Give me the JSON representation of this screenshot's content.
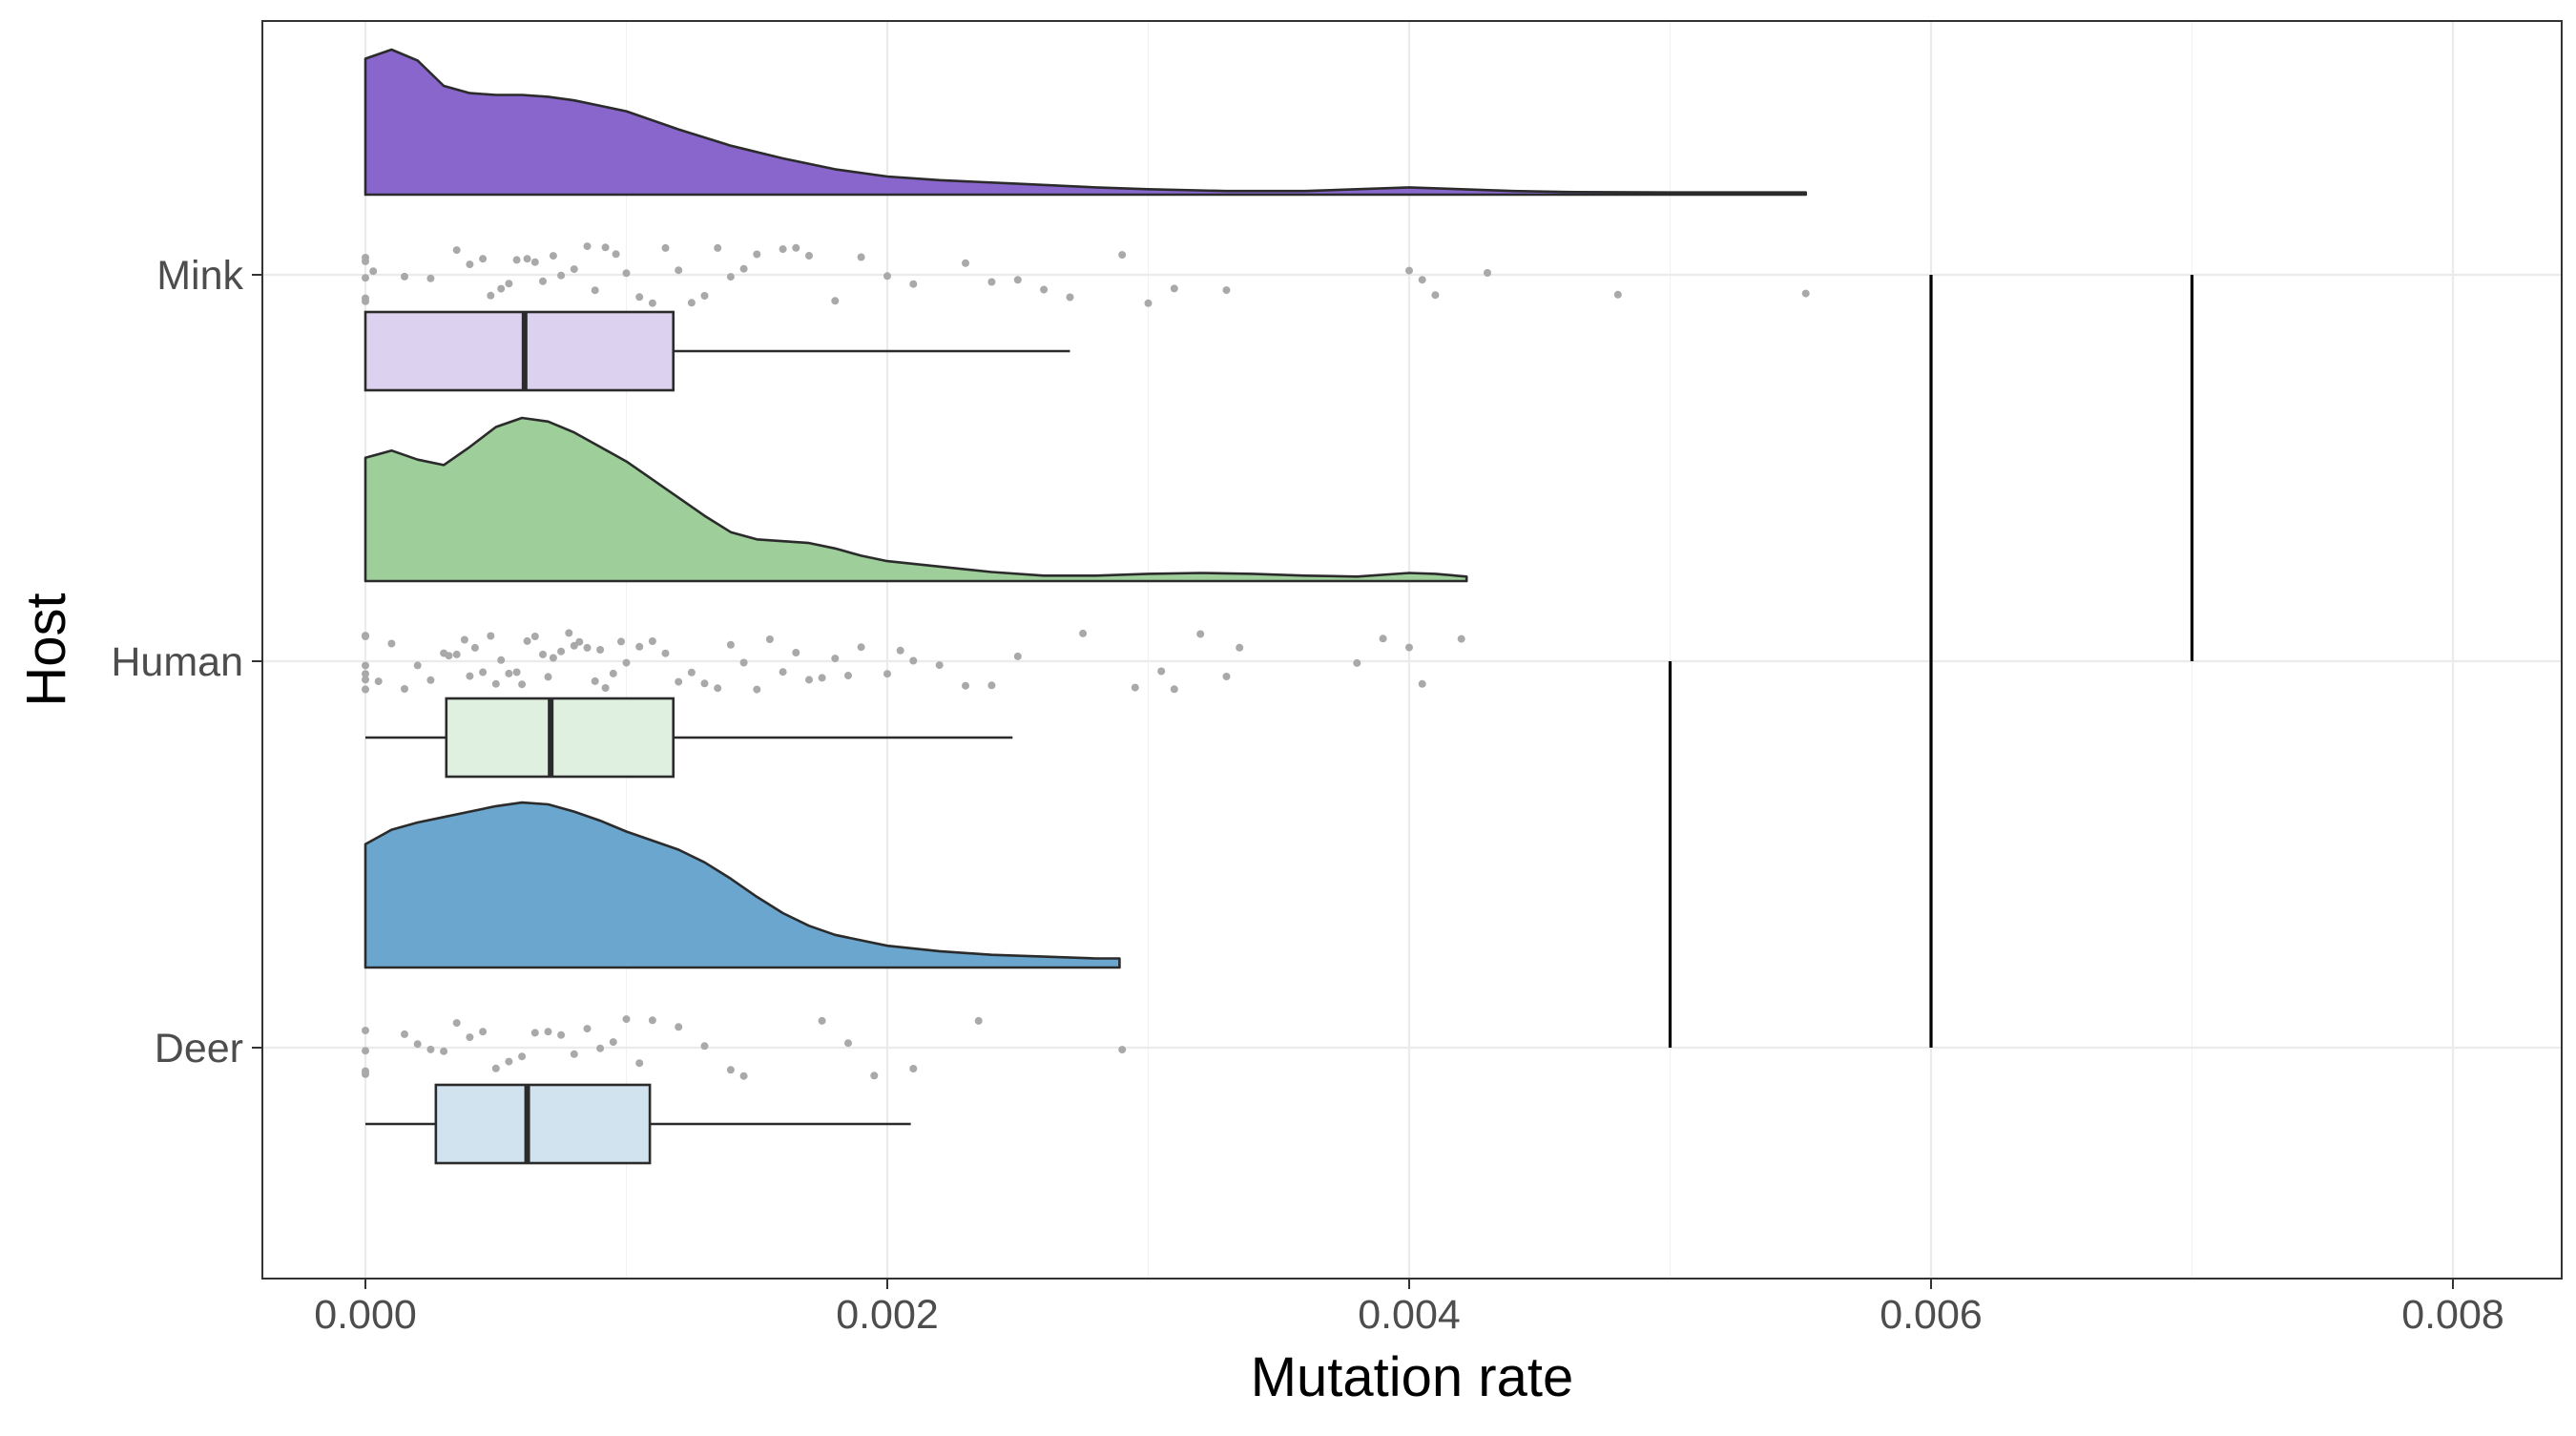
{
  "chart_data": {
    "type": "raincloud",
    "xlabel": "Mutation rate",
    "ylabel": "Host",
    "xlim": [
      -0.0002,
      0.0084
    ],
    "x_ticks": [
      0.0,
      0.002,
      0.004,
      0.006,
      0.008
    ],
    "x_tick_labels": [
      "0.000",
      "0.002",
      "0.004",
      "0.006",
      "0.008"
    ],
    "grid": true,
    "theme": "bw",
    "categories": [
      "Deer",
      "Human",
      "Mink"
    ],
    "series": [
      {
        "host": "Mink",
        "density_color": "#8866CC",
        "box_color": "#DCD2F0",
        "box": {
          "min": 0.0,
          "q1": 0.0,
          "median": 0.00061,
          "q3": 0.00118,
          "max": 0.0027
        },
        "density_max_x": 0.00552,
        "density": [
          [
            0.0,
            0.75
          ],
          [
            0.0001,
            0.8
          ],
          [
            0.0002,
            0.74
          ],
          [
            0.0003,
            0.6
          ],
          [
            0.0004,
            0.56
          ],
          [
            0.0005,
            0.55
          ],
          [
            0.0006,
            0.55
          ],
          [
            0.0007,
            0.54
          ],
          [
            0.0008,
            0.52
          ],
          [
            0.001,
            0.46
          ],
          [
            0.0012,
            0.36
          ],
          [
            0.0014,
            0.27
          ],
          [
            0.0016,
            0.2
          ],
          [
            0.0018,
            0.14
          ],
          [
            0.002,
            0.1
          ],
          [
            0.0022,
            0.08
          ],
          [
            0.0025,
            0.06
          ],
          [
            0.0028,
            0.04
          ],
          [
            0.003,
            0.03
          ],
          [
            0.0033,
            0.02
          ],
          [
            0.0036,
            0.02
          ],
          [
            0.0038,
            0.03
          ],
          [
            0.004,
            0.04
          ],
          [
            0.0042,
            0.03
          ],
          [
            0.0044,
            0.02
          ],
          [
            0.0046,
            0.015
          ],
          [
            0.005,
            0.012
          ],
          [
            0.00552,
            0.012
          ]
        ],
        "jitter_points": [
          0.0,
          0.0,
          0.0,
          0.0,
          0.0,
          3e-05,
          0.00015,
          0.00025,
          0.00035,
          0.0004,
          0.00045,
          0.00048,
          0.00052,
          0.00055,
          0.00058,
          0.00062,
          0.00065,
          0.00068,
          0.00072,
          0.00075,
          0.0008,
          0.00085,
          0.00088,
          0.00092,
          0.00096,
          0.001,
          0.00105,
          0.0011,
          0.00115,
          0.0012,
          0.00125,
          0.0013,
          0.00135,
          0.0014,
          0.00145,
          0.0015,
          0.0016,
          0.00165,
          0.0017,
          0.0018,
          0.0019,
          0.002,
          0.0021,
          0.0023,
          0.0024,
          0.0025,
          0.0026,
          0.0027,
          0.0029,
          0.003,
          0.0031,
          0.0033,
          0.004,
          0.00405,
          0.0041,
          0.0043,
          0.0048,
          0.00552
        ]
      },
      {
        "host": "Human",
        "density_color": "#9ECE9A",
        "box_color": "#E0F0E0",
        "box": {
          "min": 0.0,
          "q1": 0.00031,
          "median": 0.00071,
          "q3": 0.00118,
          "max": 0.00248
        },
        "density_max_x": 0.00422,
        "density": [
          [
            0.0,
            0.68
          ],
          [
            0.0001,
            0.72
          ],
          [
            0.0002,
            0.67
          ],
          [
            0.0003,
            0.64
          ],
          [
            0.0004,
            0.74
          ],
          [
            0.0005,
            0.85
          ],
          [
            0.0006,
            0.9
          ],
          [
            0.0007,
            0.88
          ],
          [
            0.0008,
            0.82
          ],
          [
            0.0009,
            0.74
          ],
          [
            0.001,
            0.66
          ],
          [
            0.0011,
            0.56
          ],
          [
            0.0012,
            0.46
          ],
          [
            0.0013,
            0.36
          ],
          [
            0.0014,
            0.27
          ],
          [
            0.0015,
            0.23
          ],
          [
            0.0016,
            0.22
          ],
          [
            0.0017,
            0.21
          ],
          [
            0.0018,
            0.18
          ],
          [
            0.0019,
            0.14
          ],
          [
            0.002,
            0.11
          ],
          [
            0.0022,
            0.08
          ],
          [
            0.0024,
            0.05
          ],
          [
            0.0026,
            0.03
          ],
          [
            0.0028,
            0.03
          ],
          [
            0.003,
            0.04
          ],
          [
            0.0032,
            0.045
          ],
          [
            0.0034,
            0.04
          ],
          [
            0.0036,
            0.03
          ],
          [
            0.0038,
            0.025
          ],
          [
            0.004,
            0.045
          ],
          [
            0.0041,
            0.04
          ],
          [
            0.00422,
            0.025
          ]
        ],
        "jitter_points": [
          0.0,
          0.0,
          0.0,
          0.0,
          0.0,
          0.0,
          5e-05,
          0.0001,
          0.00015,
          0.0002,
          0.00025,
          0.0003,
          0.00032,
          0.00035,
          0.00038,
          0.0004,
          0.00042,
          0.00045,
          0.00048,
          0.0005,
          0.00052,
          0.00055,
          0.00058,
          0.0006,
          0.00062,
          0.00065,
          0.00068,
          0.0007,
          0.00072,
          0.00075,
          0.00078,
          0.0008,
          0.00082,
          0.00085,
          0.00088,
          0.0009,
          0.00092,
          0.00095,
          0.00098,
          0.001,
          0.00105,
          0.0011,
          0.00115,
          0.0012,
          0.00125,
          0.0013,
          0.00135,
          0.0014,
          0.00145,
          0.0015,
          0.00155,
          0.0016,
          0.00165,
          0.0017,
          0.00175,
          0.0018,
          0.00185,
          0.0019,
          0.002,
          0.00205,
          0.0021,
          0.0022,
          0.0023,
          0.0024,
          0.0025,
          0.00275,
          0.00295,
          0.00305,
          0.0031,
          0.0032,
          0.0033,
          0.00335,
          0.0038,
          0.0039,
          0.004,
          0.00405,
          0.0042
        ]
      },
      {
        "host": "Deer",
        "density_color": "#6BA6CE",
        "box_color": "#D2E3F0",
        "box": {
          "min": 0.0,
          "q1": 0.00027,
          "median": 0.00062,
          "q3": 0.00109,
          "max": 0.00209
        },
        "density_max_x": 0.00289,
        "density": [
          [
            0.0,
            0.68
          ],
          [
            0.0001,
            0.76
          ],
          [
            0.0002,
            0.8
          ],
          [
            0.0003,
            0.83
          ],
          [
            0.0004,
            0.86
          ],
          [
            0.0005,
            0.89
          ],
          [
            0.0006,
            0.91
          ],
          [
            0.0007,
            0.9
          ],
          [
            0.0008,
            0.86
          ],
          [
            0.0009,
            0.81
          ],
          [
            0.001,
            0.75
          ],
          [
            0.0011,
            0.7
          ],
          [
            0.0012,
            0.65
          ],
          [
            0.0013,
            0.58
          ],
          [
            0.0014,
            0.49
          ],
          [
            0.0015,
            0.39
          ],
          [
            0.0016,
            0.3
          ],
          [
            0.0017,
            0.23
          ],
          [
            0.0018,
            0.18
          ],
          [
            0.0019,
            0.15
          ],
          [
            0.002,
            0.12
          ],
          [
            0.0022,
            0.09
          ],
          [
            0.0024,
            0.07
          ],
          [
            0.0026,
            0.06
          ],
          [
            0.0028,
            0.05
          ],
          [
            0.00289,
            0.05
          ]
        ],
        "jitter_points": [
          0.0,
          0.0,
          0.0,
          0.0,
          0.00015,
          0.0002,
          0.00025,
          0.0003,
          0.00035,
          0.0004,
          0.00045,
          0.0005,
          0.00055,
          0.0006,
          0.00065,
          0.0007,
          0.00075,
          0.0008,
          0.00085,
          0.0009,
          0.00095,
          0.001,
          0.00105,
          0.0011,
          0.0012,
          0.0013,
          0.0014,
          0.00145,
          0.00175,
          0.00185,
          0.00195,
          0.0021,
          0.00235,
          0.0029
        ]
      }
    ],
    "vertical_lines": [
      {
        "x": 0.005,
        "from_host": "Deer",
        "to_host": "Human"
      },
      {
        "x": 0.006,
        "from_host": "Deer",
        "to_host": "Human"
      },
      {
        "x": 0.006,
        "from_host": "Human",
        "to_host": "Mink"
      },
      {
        "x": 0.007,
        "from_host": "Human",
        "to_host": "Mink"
      }
    ]
  }
}
